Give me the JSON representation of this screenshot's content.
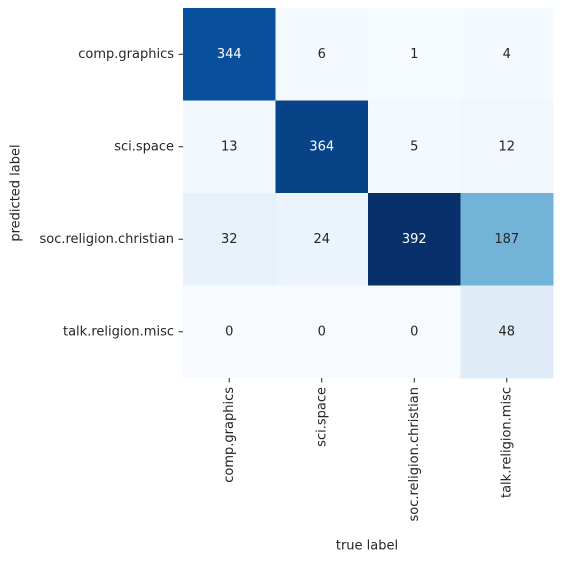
{
  "chart_data": {
    "type": "heatmap",
    "x_label": "true label",
    "y_label": "predicted label",
    "x_categories": [
      "comp.graphics",
      "sci.space",
      "soc.religion.christian",
      "talk.religion.misc"
    ],
    "y_categories": [
      "comp.graphics",
      "sci.space",
      "soc.religion.christian",
      "talk.religion.misc"
    ],
    "values": [
      [
        344,
        6,
        1,
        4
      ],
      [
        13,
        364,
        5,
        12
      ],
      [
        32,
        24,
        392,
        187
      ],
      [
        0,
        0,
        0,
        48
      ]
    ],
    "colormap": "Blues"
  }
}
